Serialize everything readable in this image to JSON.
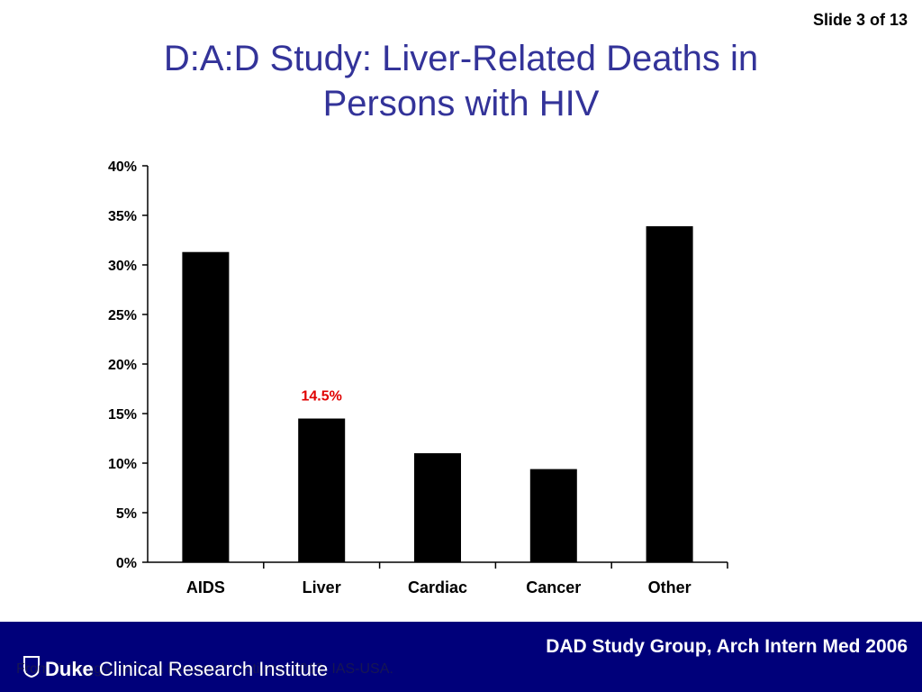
{
  "slide": {
    "counter": "Slide 3 of 13"
  },
  "title": {
    "line1": "D:A:D Study: Liver-Related Deaths in",
    "line2": "Persons with HIV"
  },
  "chart_data": {
    "type": "bar",
    "categories": [
      "AIDS",
      "Liver",
      "Cardiac",
      "Cancer",
      "Other"
    ],
    "values": [
      31.3,
      14.5,
      11.0,
      9.4,
      33.9
    ],
    "y_ticks": [
      "0%",
      "5%",
      "10%",
      "15%",
      "20%",
      "25%",
      "30%",
      "35%",
      "40%"
    ],
    "ylim": [
      0,
      40
    ],
    "annotations": [
      {
        "category": "Liver",
        "text": "14.5%",
        "color": "#e00000"
      }
    ],
    "bar_color": "#000000",
    "grid": false,
    "legend": "none"
  },
  "footer": {
    "citation": "DAD Study Group, Arch Intern Med 2006",
    "logo_brand": "Duke",
    "logo_rest": " Clinical Research Institute",
    "source_text": "From S Naggie, MD, at Research Institute, 2013, IAS-USA.",
    "background": "#00007a"
  }
}
